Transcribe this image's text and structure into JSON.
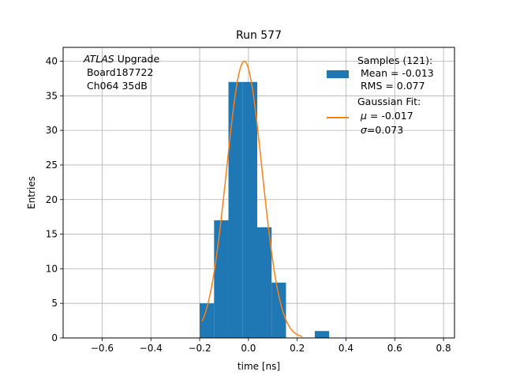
{
  "chart_data": {
    "type": "bar",
    "title": "Run 577",
    "xlabel": "time [ns]",
    "ylabel": "Entries",
    "xlim": [
      -0.76,
      0.845
    ],
    "ylim": [
      0,
      42
    ],
    "xticks": [
      -0.6,
      -0.4,
      -0.2,
      0.0,
      0.2,
      0.4,
      0.6,
      0.8
    ],
    "xtick_labels": [
      "−0.6",
      "−0.4",
      "−0.2",
      "0.0",
      "0.2",
      "0.4",
      "0.6",
      "0.8"
    ],
    "yticks": [
      0,
      5,
      10,
      15,
      20,
      25,
      30,
      35,
      40
    ],
    "ytick_labels": [
      "0",
      "5",
      "10",
      "15",
      "20",
      "25",
      "30",
      "35",
      "40"
    ],
    "grid": true,
    "bin_edges": [
      -0.2,
      -0.141,
      -0.082,
      -0.023,
      0.036,
      0.095,
      0.154,
      0.213,
      0.272,
      0.331
    ],
    "counts": [
      5,
      17,
      37,
      37,
      16,
      8,
      0,
      0,
      1
    ],
    "bar_color": "#1f77b4",
    "fit": {
      "mu": -0.017,
      "sigma": 0.073,
      "amplitude": 40,
      "x_range": [
        -0.19,
        0.22
      ],
      "color": "#ff7f0e"
    },
    "annotation": {
      "line1_italic": "ATLAS",
      "line1_rest": " Upgrade",
      "line2": " Board187722",
      "line3": " Ch064 35dB"
    },
    "legend": {
      "placement": "top-right",
      "samples_title": "Samples (121):",
      "samples_mean": " Mean = -0.013",
      "samples_rms": " RMS = 0.077",
      "fit_title": "Gaussian Fit:",
      "fit_mu_sym": "μ",
      "fit_mu_val": " = -0.017",
      "fit_sigma_sym": "σ",
      "fit_sigma_val": "=0.073"
    }
  }
}
